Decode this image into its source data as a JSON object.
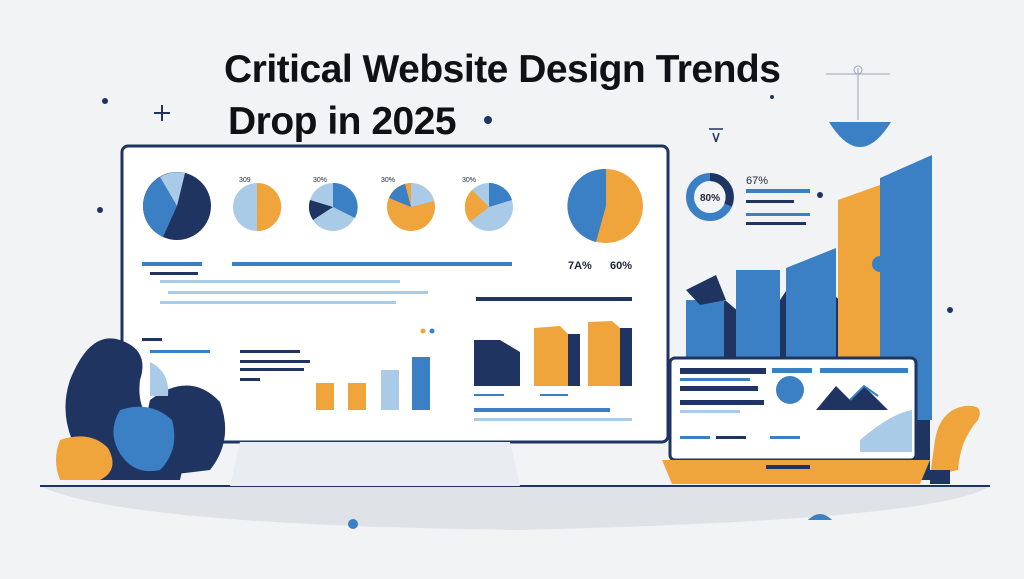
{
  "headline": {
    "line1": "Critical Website Design Trends",
    "line2": "Drop in 2025"
  },
  "monitor": {
    "gauge_label": "7A%",
    "gauge_label_2": "60%",
    "small_pie_labels": [
      "309",
      "30%",
      "30%",
      "30%",
      "30%"
    ],
    "big_pie_label": "50%"
  },
  "side_widget": {
    "donut_center": "80%",
    "stat": "67%"
  },
  "colors": {
    "navy": "#1f3461",
    "blue": "#3b7fc4",
    "light_blue": "#a9cbe8",
    "orange": "#f0a43c",
    "background": "#f2f3f5"
  }
}
